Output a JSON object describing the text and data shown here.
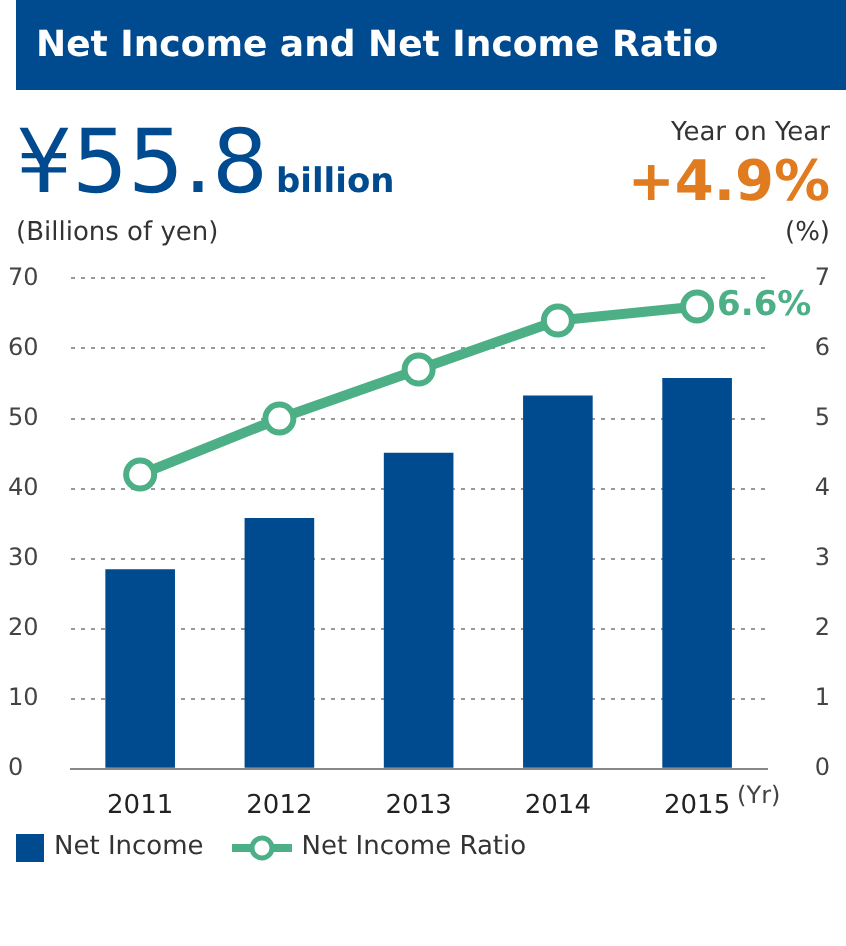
{
  "chart_data": {
    "type": "bar",
    "title": "Net Income and Net Income Ratio",
    "ylabel": "(Billions of yen)",
    "y2label": "(%)",
    "xlabel": "(Yr)",
    "annotations": [
      "¥55.8",
      "billion",
      "Year on Year",
      "+4.9%"
    ],
    "categories": [
      "2011",
      "2012",
      "2013",
      "2014",
      "2015"
    ],
    "series": [
      {
        "name": "Net Income",
        "color": "#004a8f",
        "values": [
          28.5,
          35.8,
          45.1,
          53.3,
          55.8
        ]
      },
      {
        "name": "Net Income Ratio",
        "type": "line",
        "axis": "y2",
        "color": "#4caf86",
        "values": [
          4.2,
          5.0,
          5.7,
          6.4,
          6.6
        ],
        "value_labels": [
          null,
          null,
          null,
          null,
          "6.6%"
        ]
      }
    ],
    "ylim": [
      0,
      70
    ],
    "yticks": [
      0,
      10,
      20,
      30,
      40,
      50,
      60,
      70
    ],
    "y2lim": [
      0,
      7
    ],
    "y2ticks": [
      0,
      1,
      2,
      3,
      4,
      5,
      6,
      7
    ],
    "grid": "y",
    "legend": "bottom",
    "marker": "circle",
    "line_style": "solid"
  }
}
